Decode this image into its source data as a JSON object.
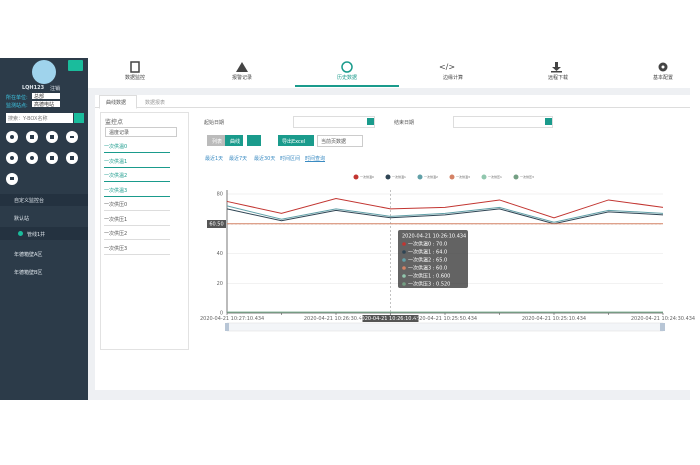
{
  "sidebar": {
    "username": "LQH123",
    "logout": "注销",
    "fields": [
      {
        "label": "所在单位:",
        "value": "总部"
      },
      {
        "label": "监测站点:",
        "value": "高德电站"
      }
    ],
    "search_placeholder": "搜索：Y-BOX名称",
    "menu": [
      "自定义监控台",
      "默认站",
      "管线1井",
      "年德箱壁A区",
      "年德箱壁B区"
    ]
  },
  "nav": [
    "数据监控",
    "报警记录",
    "历史数据",
    "边缘计算",
    "远程下载",
    "基本配置"
  ],
  "tabs": [
    "曲线数据",
    "数据报表"
  ],
  "points_panel": {
    "title": "监控点",
    "select": "温度记录",
    "items": [
      "一次供温0",
      "一次供温1",
      "一次供温2",
      "一次供温3",
      "一次供压0",
      "一次供压1",
      "一次供压2",
      "一次供压3"
    ]
  },
  "filters": {
    "start_label": "起始日期",
    "end_label": "结束日期",
    "view_buttons": [
      "列表",
      "曲线"
    ],
    "export": "导出Excel",
    "page_select": "当前页数据",
    "ranges": [
      "最近1天",
      "最近7天",
      "最近30天",
      "时间区间",
      "时间查询"
    ]
  },
  "chart_data": {
    "type": "line",
    "categories": [
      "2020-04-21 10:27:10.434",
      null,
      "2020-04-21 10:26:30.434",
      "2020-04-21 10:26:10.434",
      "2020-04-21 10:25:50.434",
      null,
      "2020-04-21 10:25:10.434",
      null,
      "2020-04-21 10:24:30.434"
    ],
    "series": [
      {
        "name": "一次供温0",
        "color": "#c23531",
        "values": [
          75,
          67,
          77,
          70,
          71,
          76,
          64,
          76,
          71
        ]
      },
      {
        "name": "一次供温1",
        "color": "#2f4554",
        "values": [
          70,
          62,
          69,
          64,
          66,
          70,
          60,
          68,
          66
        ]
      },
      {
        "name": "一次供温2",
        "color": "#61a0a8",
        "values": [
          72,
          63,
          70,
          65,
          67,
          71,
          61,
          69,
          67
        ]
      },
      {
        "name": "一次供温3",
        "color": "#d48265",
        "values": [
          60,
          60,
          60,
          60,
          60,
          60,
          60,
          60,
          60
        ]
      },
      {
        "name": "一次供压1",
        "color": "#91c7ae",
        "values": [
          0.6,
          0.6,
          0.6,
          0.6,
          0.6,
          0.6,
          0.6,
          0.6,
          0.6
        ]
      },
      {
        "name": "一次供压3",
        "color": "#749f83",
        "values": [
          0.52,
          0.52,
          0.52,
          0.52,
          0.52,
          0.52,
          0.52,
          0.52,
          0.52
        ]
      }
    ],
    "ylim": [
      0,
      80
    ],
    "yticks": [
      0,
      20,
      40,
      60,
      80
    ],
    "grid": true,
    "legend": "top",
    "crosshair_y_label": "60.50",
    "tooltip": {
      "index": 3,
      "items": [
        "一次供温0 : 70.0",
        "一次供温1 : 64.0",
        "一次供温2 : 65.0",
        "一次供温3 : 60.0",
        "一次供压1 : 0.600",
        "一次供压3 : 0.520"
      ]
    }
  }
}
